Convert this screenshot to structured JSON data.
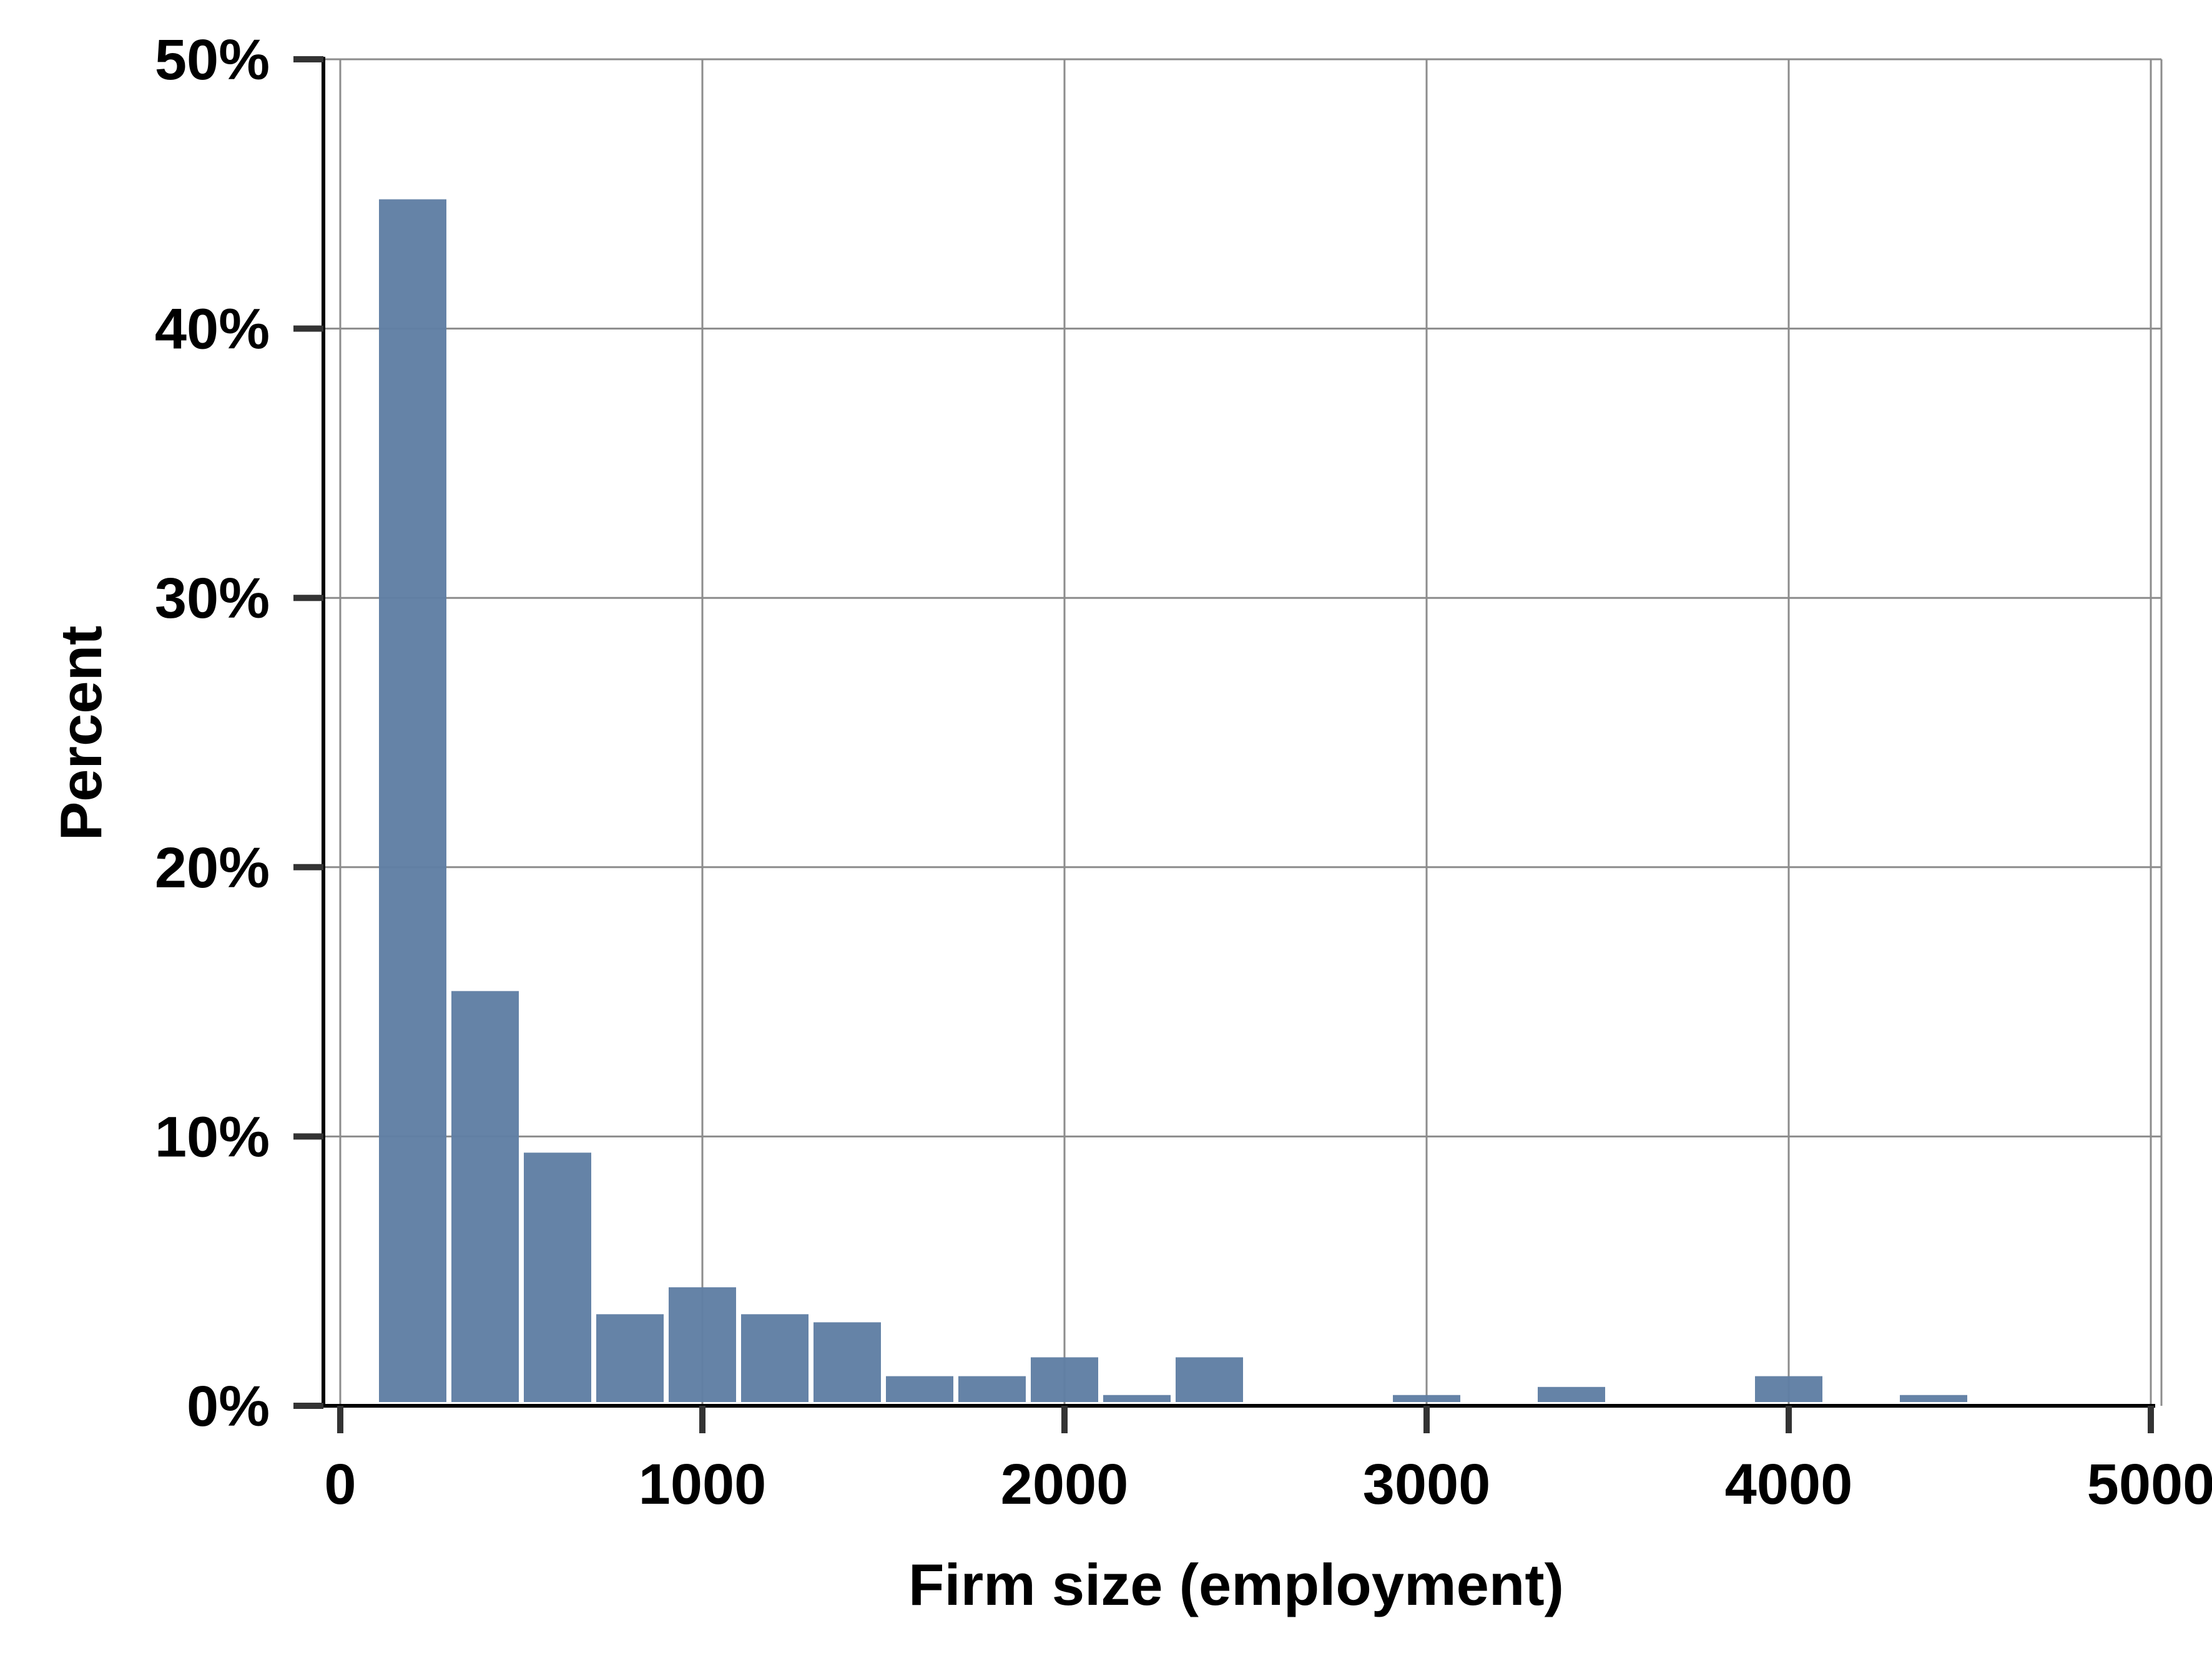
{
  "chart_data": {
    "type": "bar",
    "title": "",
    "xlabel": "Firm size (employment)",
    "ylabel": "Percent",
    "xlim": [
      0,
      5000
    ],
    "ylim": [
      0,
      50
    ],
    "x_ticks": [
      {
        "value": 0,
        "label": "0"
      },
      {
        "value": 1000,
        "label": "1000"
      },
      {
        "value": 2000,
        "label": "2000"
      },
      {
        "value": 3000,
        "label": "3000"
      },
      {
        "value": 4000,
        "label": "4000"
      },
      {
        "value": 5000,
        "label": "5000"
      }
    ],
    "y_ticks": [
      {
        "value": 0,
        "label": "0%"
      },
      {
        "value": 10,
        "label": "10%"
      },
      {
        "value": 20,
        "label": "20%"
      },
      {
        "value": 30,
        "label": "30%"
      },
      {
        "value": 40,
        "label": "40%"
      },
      {
        "value": 50,
        "label": "50%"
      }
    ],
    "bin_width": 200,
    "bins": [
      {
        "x0": 100,
        "x1": 300,
        "value": 44.8
      },
      {
        "x0": 300,
        "x1": 500,
        "value": 15.4
      },
      {
        "x0": 500,
        "x1": 700,
        "value": 9.4
      },
      {
        "x0": 700,
        "x1": 900,
        "value": 3.4
      },
      {
        "x0": 900,
        "x1": 1100,
        "value": 4.4
      },
      {
        "x0": 1100,
        "x1": 1300,
        "value": 3.4
      },
      {
        "x0": 1300,
        "x1": 1500,
        "value": 3.1
      },
      {
        "x0": 1500,
        "x1": 1700,
        "value": 1.1
      },
      {
        "x0": 1700,
        "x1": 1900,
        "value": 1.1
      },
      {
        "x0": 1900,
        "x1": 2100,
        "value": 1.8
      },
      {
        "x0": 2100,
        "x1": 2300,
        "value": 0.4
      },
      {
        "x0": 2300,
        "x1": 2500,
        "value": 1.8
      },
      {
        "x0": 2900,
        "x1": 3100,
        "value": 0.4
      },
      {
        "x0": 3300,
        "x1": 3500,
        "value": 0.7
      },
      {
        "x0": 3900,
        "x1": 4100,
        "value": 1.1
      },
      {
        "x0": 4300,
        "x1": 4500,
        "value": 0.4
      }
    ],
    "grid": true,
    "legend": "none",
    "bar_color": "#5f7ea3",
    "grid_color": "#8c8c8c",
    "axis_color": "#000000",
    "tick_color": "#333333"
  }
}
